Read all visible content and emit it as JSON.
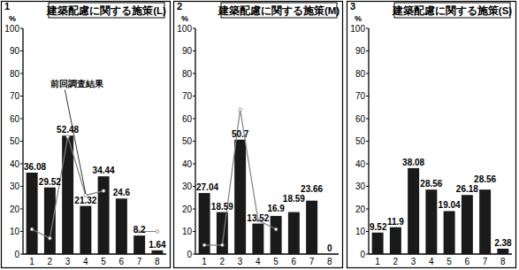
{
  "chart_data": [
    {
      "type": "bar",
      "title": "建築配慮に関する施策(L)",
      "annotations": [
        "1"
      ],
      "y_label": "%",
      "categories": [
        "1",
        "2",
        "3",
        "4",
        "5",
        "6",
        "7",
        "8"
      ],
      "series": [
        {
          "type": "bar",
          "color": "#1a1a1a",
          "values": [
            36.08,
            29.52,
            52.48,
            21.32,
            34.44,
            24.6,
            8.2,
            1.64
          ]
        },
        {
          "name": "前回調査結果",
          "type": "line",
          "color": "#808080",
          "values": [
            11,
            7,
            52,
            26,
            28,
            null,
            10,
            10
          ]
        }
      ],
      "ylim": [
        0,
        100
      ],
      "yticks": [
        0,
        10,
        20,
        30,
        40,
        50,
        60,
        70,
        80,
        90,
        100
      ],
      "data_labels": true
    },
    {
      "type": "bar",
      "title": "建築配慮に関する施策(M)",
      "annotations": [
        "2"
      ],
      "y_label": "%",
      "categories": [
        "1",
        "2",
        "3",
        "4",
        "5",
        "6",
        "7",
        "8"
      ],
      "series": [
        {
          "type": "bar",
          "color": "#1a1a1a",
          "values": [
            27.04,
            18.59,
            50.7,
            13.52,
            16.9,
            18.59,
            23.66,
            0
          ]
        },
        {
          "type": "line",
          "color": "#808080",
          "values": [
            4,
            4,
            64,
            15,
            11,
            null,
            null,
            null
          ]
        }
      ],
      "ylim": [
        0,
        100
      ],
      "yticks": [
        0,
        10,
        20,
        30,
        40,
        50,
        60,
        70,
        80,
        90,
        100
      ],
      "data_labels": true
    },
    {
      "type": "bar",
      "title": "建築配慮に関する施策(S)",
      "annotations": [
        "3"
      ],
      "y_label": "%",
      "categories": [
        "1",
        "2",
        "3",
        "4",
        "5",
        "6",
        "7",
        "8"
      ],
      "series": [
        {
          "type": "bar",
          "color": "#1a1a1a",
          "values": [
            9.52,
            11.9,
            38.08,
            28.56,
            19.04,
            26.18,
            28.56,
            2.38
          ]
        }
      ],
      "ylim": [
        0,
        100
      ],
      "yticks": [
        0,
        10,
        20,
        30,
        40,
        50,
        60,
        70,
        80,
        90,
        100
      ],
      "data_labels": true
    }
  ]
}
